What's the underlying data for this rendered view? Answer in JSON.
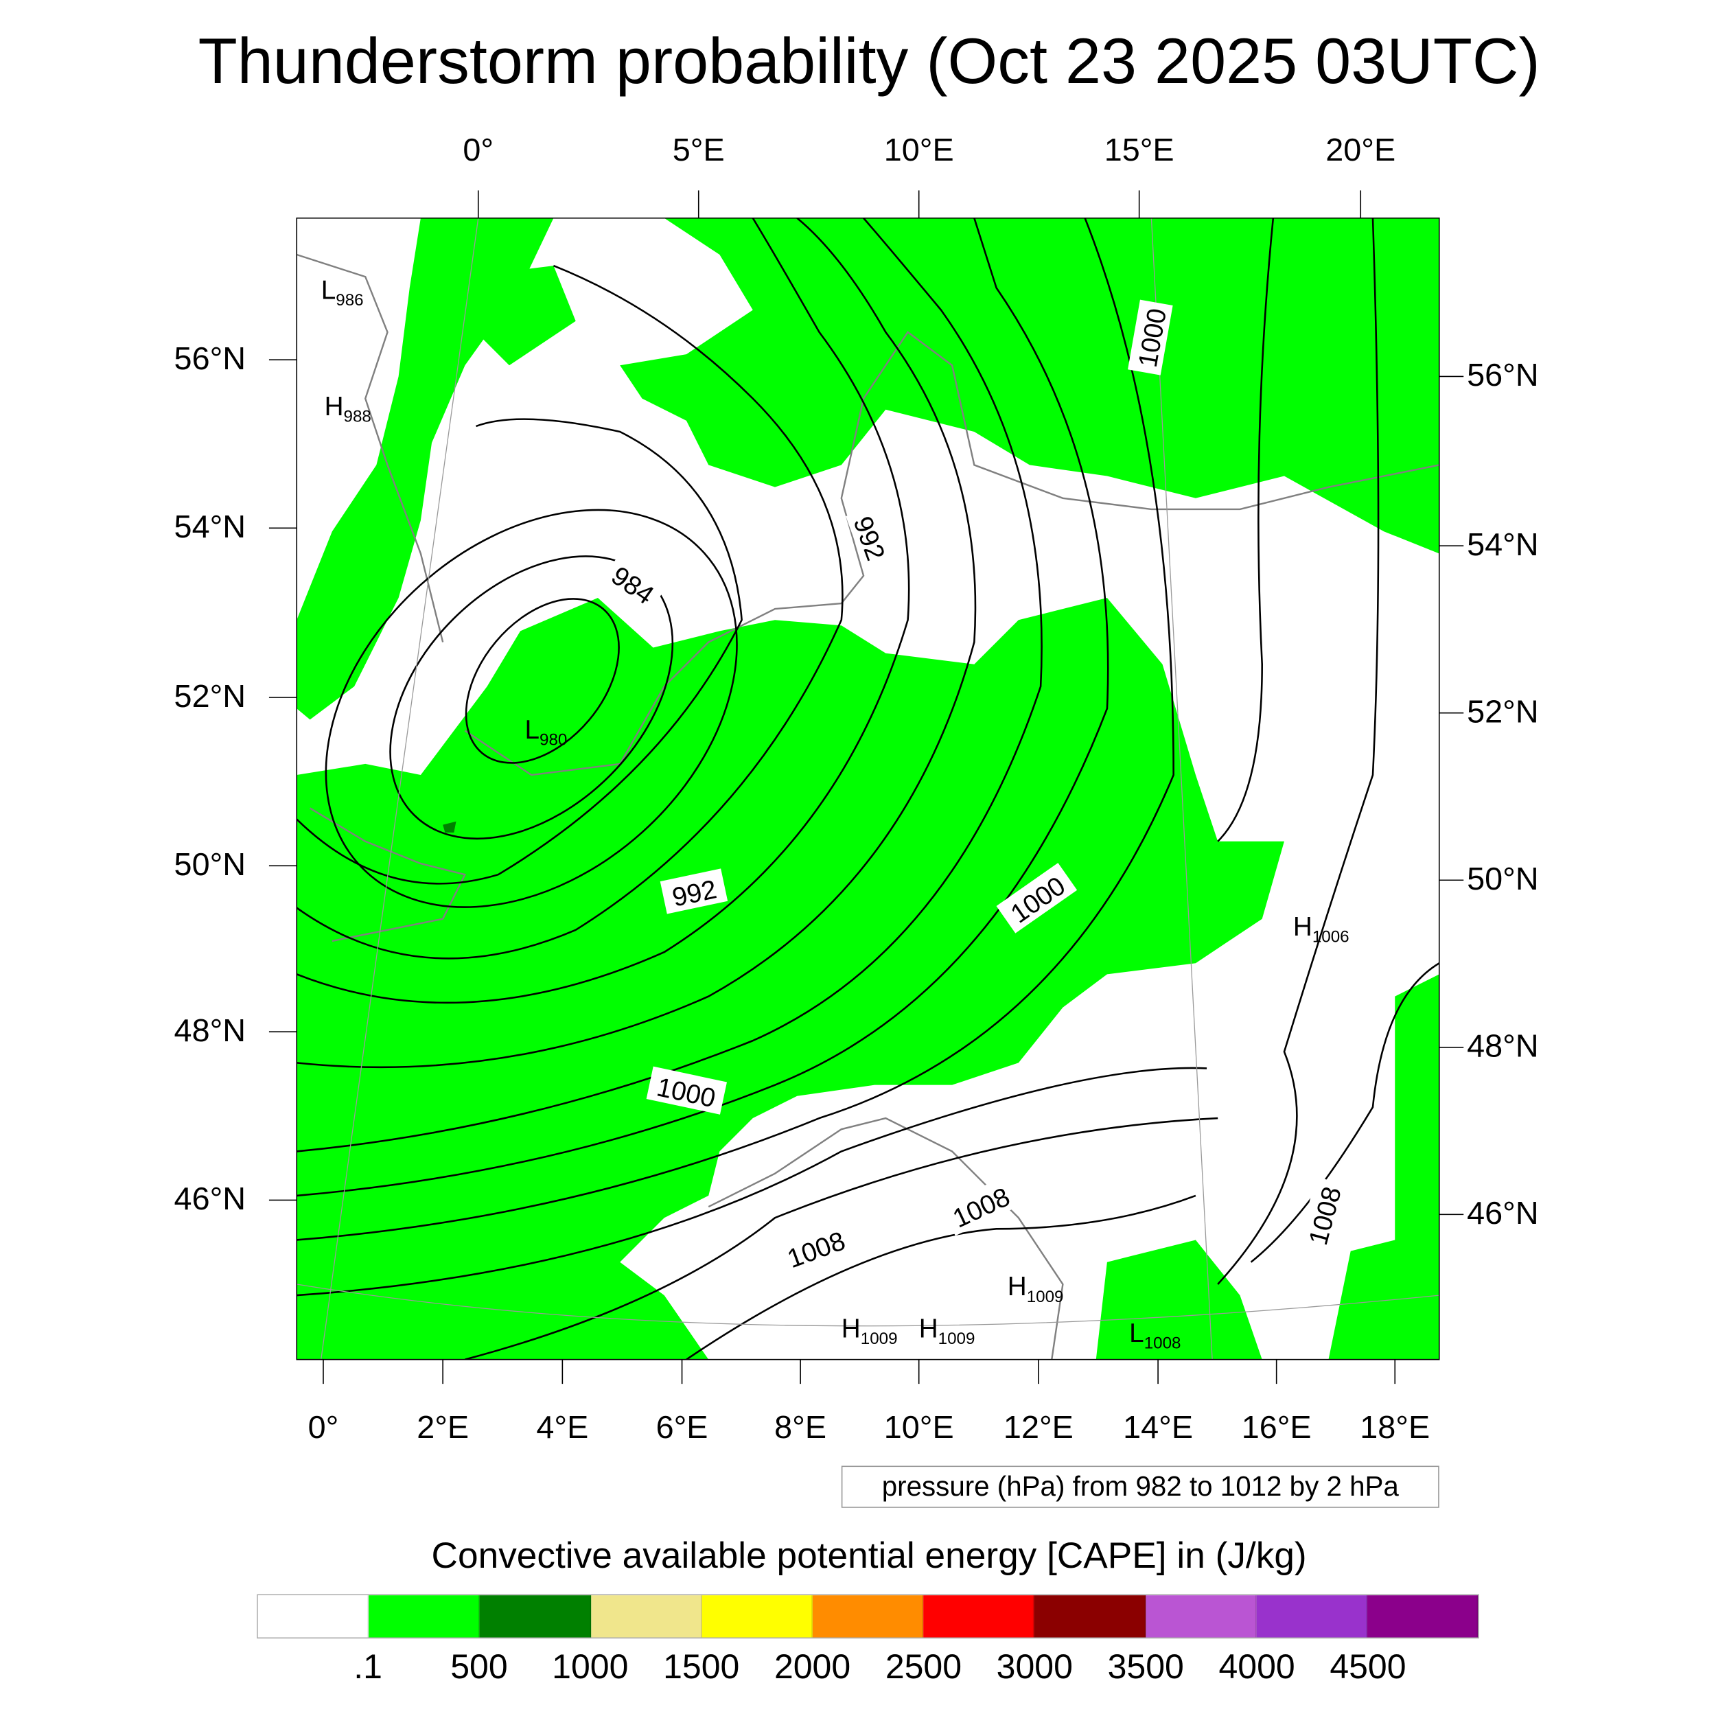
{
  "chart_data": {
    "type": "heatmap",
    "title": "Thunderstorm probability (Oct 23 2025 03UTC)",
    "top_lon_ticks": [
      "0°",
      "5°E",
      "10°E",
      "15°E",
      "20°E"
    ],
    "bottom_lon_ticks": [
      "0°",
      "2°E",
      "4°E",
      "6°E",
      "8°E",
      "10°E",
      "12°E",
      "14°E",
      "16°E",
      "18°E"
    ],
    "left_lat_ticks": [
      "56°N",
      "54°N",
      "52°N",
      "50°N",
      "48°N",
      "46°N"
    ],
    "right_lat_ticks": [
      "56°N",
      "54°N",
      "52°N",
      "50°N",
      "48°N",
      "46°N"
    ],
    "contour_labels": [
      "984",
      "992",
      "992",
      "1000",
      "1000",
      "1000",
      "1008",
      "1008",
      "1008"
    ],
    "pressure_centers": [
      {
        "type": "L",
        "value": "986"
      },
      {
        "type": "H",
        "value": "988"
      },
      {
        "type": "L",
        "value": "980"
      },
      {
        "type": "H",
        "value": "1006"
      },
      {
        "type": "H",
        "value": "1009"
      },
      {
        "type": "H",
        "value": "1009"
      },
      {
        "type": "H",
        "value": "1009"
      },
      {
        "type": "L",
        "value": "1008"
      }
    ],
    "contour_info": "pressure (hPa) from 982 to 1012 by 2 hPa",
    "colorbar": {
      "title": "Convective available potential energy [CAPE] in (J/kg)",
      "labels": [
        ".1",
        "500",
        "1000",
        "1500",
        "2000",
        "2500",
        "3000",
        "3500",
        "4000",
        "4500"
      ],
      "colors": [
        "#ffffff",
        "#00ff00",
        "#008000",
        "#f0e68c",
        "#ffff00",
        "#ff8c00",
        "#ff0000",
        "#8b0000",
        "#ba55d3",
        "#9932cc",
        "#8b008b"
      ]
    },
    "field_colors": {
      "cape_low": "#00ff00",
      "cape_mid": "#008000",
      "coast": "#808080",
      "contour": "#000000"
    }
  }
}
